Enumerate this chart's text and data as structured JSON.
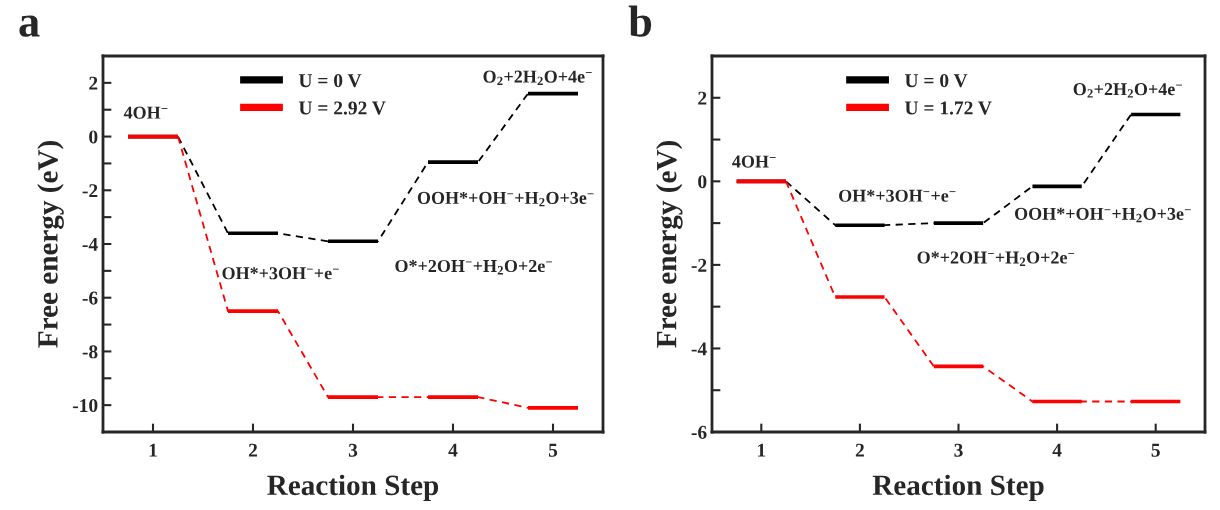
{
  "chart_data": [
    {
      "type": "line",
      "title": "a",
      "xlabel": "Reaction Step",
      "ylabel": "Free energy (eV)",
      "series": [
        {
          "line_style": "dashed",
          "color": "#000000",
          "x": [
            1.25,
            1.75,
            2.25,
            2.75,
            3.25,
            3.75,
            4.25,
            4.75
          ],
          "values": [
            0,
            -3.6,
            -3.6,
            -3.9,
            -3.9,
            -0.95,
            -0.95,
            1.6
          ]
        },
        {
          "line_style": "dashed",
          "color": "#ff0000",
          "x": [
            1.25,
            1.75,
            2.25,
            2.75,
            3.25,
            3.75,
            4.25,
            4.75
          ],
          "values": [
            0,
            -6.5,
            -6.5,
            -9.7,
            -9.7,
            -9.7,
            -9.7,
            -10.1
          ]
        },
        {
          "name": "U = 0 V",
          "line_style": "solid",
          "color": "#000000",
          "x": [
            0.75,
            1.25,
            1.5,
            1.75,
            2.25,
            2.5,
            2.75,
            3.25,
            3.5,
            3.75,
            4.25,
            4.5,
            4.75,
            5.25
          ],
          "values": [
            0,
            0,
            null,
            -3.6,
            -3.6,
            null,
            -3.9,
            -3.9,
            null,
            -0.95,
            -0.95,
            null,
            1.6,
            1.6
          ]
        },
        {
          "name": "U = 2.92 V",
          "line_style": "solid",
          "color": "#ff0000",
          "x": [
            0.75,
            1.25,
            1.5,
            1.75,
            2.25,
            2.5,
            2.75,
            3.25,
            3.5,
            3.75,
            4.25,
            4.5,
            4.75,
            5.25
          ],
          "values": [
            0,
            0,
            null,
            -6.5,
            -6.5,
            null,
            -9.7,
            -9.7,
            null,
            -9.7,
            -9.7,
            null,
            -10.1,
            -10.1
          ]
        }
      ],
      "xlim": [
        0.5,
        5.5
      ],
      "xticks": [
        1,
        2,
        3,
        4,
        5
      ],
      "ylim": [
        -11,
        3
      ],
      "yticks": [
        -10,
        {
          "value": -9,
          "label": null
        },
        -8,
        {
          "value": -7,
          "label": null
        },
        -6,
        {
          "value": -5,
          "label": null
        },
        -4,
        {
          "value": -3,
          "label": null
        },
        -2,
        {
          "value": -1,
          "label": null
        },
        0,
        {
          "value": 1,
          "label": null
        },
        2
      ],
      "legend": "top",
      "annotations": [
        {
          "text": "4OH$^{−}$",
          "x": 1,
          "y": 0
        },
        {
          "text": "OH*+3OH$^{−}$+e$^{−}$",
          "x": 2,
          "y": -3.6
        },
        {
          "text": "O*+2OH$^{−}$+H$_{2}$O+2e$^{−}$",
          "x": 3,
          "y": -3.9
        },
        {
          "text": "OOH*+OH$^{−}$+H$_{2}$O+3e$^{−}$",
          "x": 4,
          "y": -0.95
        },
        {
          "text": "O$_{2}$+2H$_{2}$O+4e$^{−}$",
          "x": 5,
          "y": 1.6
        }
      ]
    },
    {
      "type": "line",
      "title": "b",
      "xlabel": "Reaction Step",
      "ylabel": "Free energy (eV)",
      "series": [
        {
          "line_style": "dashed",
          "color": "#000000",
          "x": [
            1.25,
            1.75,
            2.25,
            2.75,
            3.25,
            3.75,
            4.25,
            4.75
          ],
          "values": [
            0,
            -1.05,
            -1.05,
            -1.0,
            -1.0,
            -0.12,
            -0.12,
            1.6
          ]
        },
        {
          "line_style": "dashed",
          "color": "#ff0000",
          "x": [
            1.25,
            1.75,
            2.25,
            2.75,
            3.25,
            3.75,
            4.25,
            4.75
          ],
          "values": [
            0,
            -2.77,
            -2.77,
            -4.43,
            -4.43,
            -5.27,
            -5.27,
            -5.27
          ]
        },
        {
          "name": "U = 0 V",
          "line_style": "solid",
          "color": "#000000",
          "x": [
            0.75,
            1.25,
            1.5,
            1.75,
            2.25,
            2.5,
            2.75,
            3.25,
            3.5,
            3.75,
            4.25,
            4.5,
            4.75,
            5.25
          ],
          "values": [
            0,
            0,
            null,
            -1.05,
            -1.05,
            null,
            -1.0,
            -1.0,
            null,
            -0.12,
            -0.12,
            null,
            1.6,
            1.6
          ]
        },
        {
          "name": "U = 1.72 V",
          "line_style": "solid",
          "color": "#ff0000",
          "x": [
            0.75,
            1.25,
            1.5,
            1.75,
            2.25,
            2.5,
            2.75,
            3.25,
            3.5,
            3.75,
            4.25,
            4.5,
            4.75,
            5.25
          ],
          "values": [
            0,
            0,
            null,
            -2.77,
            -2.77,
            null,
            -4.43,
            -4.43,
            null,
            -5.27,
            -5.27,
            null,
            -5.27,
            -5.27
          ]
        }
      ],
      "xlim": [
        0.5,
        5.5
      ],
      "xticks": [
        1,
        2,
        3,
        4,
        5
      ],
      "ylim": [
        -6,
        3
      ],
      "yticks": [
        -6,
        {
          "value": -5,
          "label": null
        },
        -4,
        {
          "value": -3,
          "label": null
        },
        -2,
        {
          "value": -1,
          "label": null
        },
        0,
        {
          "value": 1,
          "label": null
        },
        2
      ],
      "legend": "top",
      "annotations": [
        {
          "text": "4OH$^{−}$",
          "x": 1,
          "y": 0
        },
        {
          "text": "OH*+3OH$^{−}$+e$^{−}$",
          "x": 2,
          "y": -1.05
        },
        {
          "text": "O*+2OH$^{−}$+H$_{2}$O+2e$^{−}$",
          "x": 3,
          "y": -1.0
        },
        {
          "text": "OOH*+OH$^{−}$+H$_{2}$O+3e$^{−}$",
          "x": 4,
          "y": -0.12
        },
        {
          "text": "O$_{2}$+2H$_{2}$O+4e$^{−}$",
          "x": 5,
          "y": 1.6
        }
      ]
    }
  ]
}
